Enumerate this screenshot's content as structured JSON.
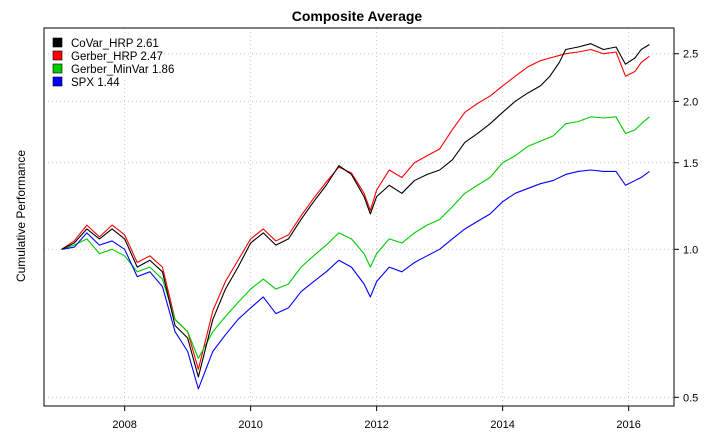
{
  "chart_data": {
    "type": "line",
    "title": "Composite Average",
    "xlabel": "",
    "ylabel": "Cumulative Performance",
    "y_scale": "log",
    "xlim": [
      2006.72,
      2016.72
    ],
    "ylim": [
      0.48,
      2.82
    ],
    "x_ticks": [
      2008,
      2010,
      2012,
      2014,
      2016
    ],
    "x_tick_labels": [
      "2008",
      "2010",
      "2012",
      "2014",
      "2016"
    ],
    "y_ticks": [
      0.5,
      1.0,
      1.5,
      2.0,
      2.5
    ],
    "y_tick_labels": [
      "0.5",
      "1.0",
      "1.5",
      "2.0",
      "2.5"
    ],
    "y_axis_side": "right",
    "grid": true,
    "legend_position": "top-left",
    "series": [
      {
        "name": "CoVar_HRP 2.61",
        "color": "#000000",
        "points": [
          [
            2007.0,
            1.0
          ],
          [
            2007.2,
            1.03
          ],
          [
            2007.4,
            1.1
          ],
          [
            2007.6,
            1.05
          ],
          [
            2007.8,
            1.1
          ],
          [
            2008.0,
            1.05
          ],
          [
            2008.2,
            0.92
          ],
          [
            2008.4,
            0.95
          ],
          [
            2008.6,
            0.9
          ],
          [
            2008.8,
            0.7
          ],
          [
            2009.0,
            0.66
          ],
          [
            2009.17,
            0.55
          ],
          [
            2009.4,
            0.72
          ],
          [
            2009.6,
            0.83
          ],
          [
            2009.8,
            0.92
          ],
          [
            2010.0,
            1.03
          ],
          [
            2010.2,
            1.08
          ],
          [
            2010.4,
            1.02
          ],
          [
            2010.6,
            1.05
          ],
          [
            2010.8,
            1.15
          ],
          [
            2011.0,
            1.25
          ],
          [
            2011.2,
            1.35
          ],
          [
            2011.4,
            1.48
          ],
          [
            2011.6,
            1.42
          ],
          [
            2011.8,
            1.28
          ],
          [
            2011.9,
            1.18
          ],
          [
            2012.0,
            1.28
          ],
          [
            2012.2,
            1.35
          ],
          [
            2012.4,
            1.3
          ],
          [
            2012.6,
            1.38
          ],
          [
            2012.8,
            1.42
          ],
          [
            2013.0,
            1.45
          ],
          [
            2013.2,
            1.52
          ],
          [
            2013.4,
            1.65
          ],
          [
            2013.6,
            1.72
          ],
          [
            2013.8,
            1.8
          ],
          [
            2014.0,
            1.9
          ],
          [
            2014.2,
            2.0
          ],
          [
            2014.4,
            2.08
          ],
          [
            2014.6,
            2.15
          ],
          [
            2014.75,
            2.25
          ],
          [
            2014.9,
            2.4
          ],
          [
            2015.0,
            2.55
          ],
          [
            2015.2,
            2.58
          ],
          [
            2015.4,
            2.62
          ],
          [
            2015.6,
            2.55
          ],
          [
            2015.8,
            2.58
          ],
          [
            2015.95,
            2.38
          ],
          [
            2016.1,
            2.45
          ],
          [
            2016.2,
            2.55
          ],
          [
            2016.33,
            2.61
          ]
        ]
      },
      {
        "name": "Gerber_HRP 2.47",
        "color": "#ff0000",
        "points": [
          [
            2007.0,
            1.0
          ],
          [
            2007.2,
            1.04
          ],
          [
            2007.4,
            1.12
          ],
          [
            2007.6,
            1.06
          ],
          [
            2007.8,
            1.12
          ],
          [
            2008.0,
            1.07
          ],
          [
            2008.2,
            0.94
          ],
          [
            2008.4,
            0.97
          ],
          [
            2008.6,
            0.92
          ],
          [
            2008.8,
            0.72
          ],
          [
            2009.0,
            0.68
          ],
          [
            2009.17,
            0.57
          ],
          [
            2009.4,
            0.75
          ],
          [
            2009.6,
            0.86
          ],
          [
            2009.8,
            0.95
          ],
          [
            2010.0,
            1.05
          ],
          [
            2010.2,
            1.1
          ],
          [
            2010.4,
            1.04
          ],
          [
            2010.6,
            1.07
          ],
          [
            2010.8,
            1.17
          ],
          [
            2011.0,
            1.27
          ],
          [
            2011.2,
            1.37
          ],
          [
            2011.4,
            1.47
          ],
          [
            2011.6,
            1.43
          ],
          [
            2011.8,
            1.3
          ],
          [
            2011.9,
            1.2
          ],
          [
            2012.0,
            1.32
          ],
          [
            2012.2,
            1.45
          ],
          [
            2012.4,
            1.4
          ],
          [
            2012.6,
            1.5
          ],
          [
            2012.8,
            1.55
          ],
          [
            2013.0,
            1.6
          ],
          [
            2013.2,
            1.75
          ],
          [
            2013.4,
            1.9
          ],
          [
            2013.6,
            1.98
          ],
          [
            2013.8,
            2.05
          ],
          [
            2014.0,
            2.15
          ],
          [
            2014.2,
            2.25
          ],
          [
            2014.4,
            2.35
          ],
          [
            2014.6,
            2.42
          ],
          [
            2014.75,
            2.45
          ],
          [
            2014.9,
            2.48
          ],
          [
            2015.0,
            2.5
          ],
          [
            2015.2,
            2.52
          ],
          [
            2015.4,
            2.55
          ],
          [
            2015.6,
            2.5
          ],
          [
            2015.8,
            2.52
          ],
          [
            2015.95,
            2.25
          ],
          [
            2016.1,
            2.3
          ],
          [
            2016.2,
            2.4
          ],
          [
            2016.33,
            2.47
          ]
        ]
      },
      {
        "name": "Gerber_MinVar 1.86",
        "color": "#00cc00",
        "points": [
          [
            2007.0,
            1.0
          ],
          [
            2007.2,
            1.02
          ],
          [
            2007.4,
            1.05
          ],
          [
            2007.6,
            0.98
          ],
          [
            2007.8,
            1.0
          ],
          [
            2008.0,
            0.97
          ],
          [
            2008.2,
            0.9
          ],
          [
            2008.4,
            0.92
          ],
          [
            2008.6,
            0.87
          ],
          [
            2008.8,
            0.72
          ],
          [
            2009.0,
            0.68
          ],
          [
            2009.17,
            0.6
          ],
          [
            2009.4,
            0.68
          ],
          [
            2009.6,
            0.73
          ],
          [
            2009.8,
            0.78
          ],
          [
            2010.0,
            0.83
          ],
          [
            2010.2,
            0.87
          ],
          [
            2010.4,
            0.83
          ],
          [
            2010.6,
            0.85
          ],
          [
            2010.8,
            0.92
          ],
          [
            2011.0,
            0.97
          ],
          [
            2011.2,
            1.02
          ],
          [
            2011.4,
            1.08
          ],
          [
            2011.6,
            1.05
          ],
          [
            2011.8,
            0.98
          ],
          [
            2011.9,
            0.92
          ],
          [
            2012.0,
            0.98
          ],
          [
            2012.2,
            1.05
          ],
          [
            2012.4,
            1.03
          ],
          [
            2012.6,
            1.08
          ],
          [
            2012.8,
            1.12
          ],
          [
            2013.0,
            1.15
          ],
          [
            2013.2,
            1.22
          ],
          [
            2013.4,
            1.3
          ],
          [
            2013.6,
            1.35
          ],
          [
            2013.8,
            1.4
          ],
          [
            2014.0,
            1.5
          ],
          [
            2014.2,
            1.55
          ],
          [
            2014.4,
            1.62
          ],
          [
            2014.6,
            1.66
          ],
          [
            2014.8,
            1.7
          ],
          [
            2015.0,
            1.8
          ],
          [
            2015.2,
            1.82
          ],
          [
            2015.4,
            1.86
          ],
          [
            2015.6,
            1.85
          ],
          [
            2015.8,
            1.86
          ],
          [
            2015.95,
            1.72
          ],
          [
            2016.1,
            1.75
          ],
          [
            2016.2,
            1.8
          ],
          [
            2016.33,
            1.86
          ]
        ]
      },
      {
        "name": "SPX 1.44",
        "color": "#0000ff",
        "points": [
          [
            2007.0,
            1.0
          ],
          [
            2007.2,
            1.01
          ],
          [
            2007.4,
            1.08
          ],
          [
            2007.6,
            1.02
          ],
          [
            2007.8,
            1.04
          ],
          [
            2008.0,
            1.0
          ],
          [
            2008.2,
            0.88
          ],
          [
            2008.4,
            0.9
          ],
          [
            2008.6,
            0.84
          ],
          [
            2008.8,
            0.68
          ],
          [
            2009.0,
            0.62
          ],
          [
            2009.17,
            0.52
          ],
          [
            2009.4,
            0.62
          ],
          [
            2009.6,
            0.67
          ],
          [
            2009.8,
            0.72
          ],
          [
            2010.0,
            0.76
          ],
          [
            2010.2,
            0.8
          ],
          [
            2010.4,
            0.74
          ],
          [
            2010.6,
            0.76
          ],
          [
            2010.8,
            0.82
          ],
          [
            2011.0,
            0.86
          ],
          [
            2011.2,
            0.9
          ],
          [
            2011.4,
            0.95
          ],
          [
            2011.6,
            0.92
          ],
          [
            2011.8,
            0.85
          ],
          [
            2011.9,
            0.8
          ],
          [
            2012.0,
            0.86
          ],
          [
            2012.2,
            0.92
          ],
          [
            2012.4,
            0.9
          ],
          [
            2012.6,
            0.94
          ],
          [
            2012.8,
            0.97
          ],
          [
            2013.0,
            1.0
          ],
          [
            2013.2,
            1.05
          ],
          [
            2013.4,
            1.1
          ],
          [
            2013.6,
            1.14
          ],
          [
            2013.8,
            1.18
          ],
          [
            2014.0,
            1.25
          ],
          [
            2014.2,
            1.3
          ],
          [
            2014.4,
            1.33
          ],
          [
            2014.6,
            1.36
          ],
          [
            2014.8,
            1.38
          ],
          [
            2015.0,
            1.42
          ],
          [
            2015.2,
            1.44
          ],
          [
            2015.4,
            1.45
          ],
          [
            2015.6,
            1.44
          ],
          [
            2015.8,
            1.44
          ],
          [
            2015.95,
            1.35
          ],
          [
            2016.1,
            1.38
          ],
          [
            2016.2,
            1.4
          ],
          [
            2016.33,
            1.44
          ]
        ]
      }
    ]
  }
}
